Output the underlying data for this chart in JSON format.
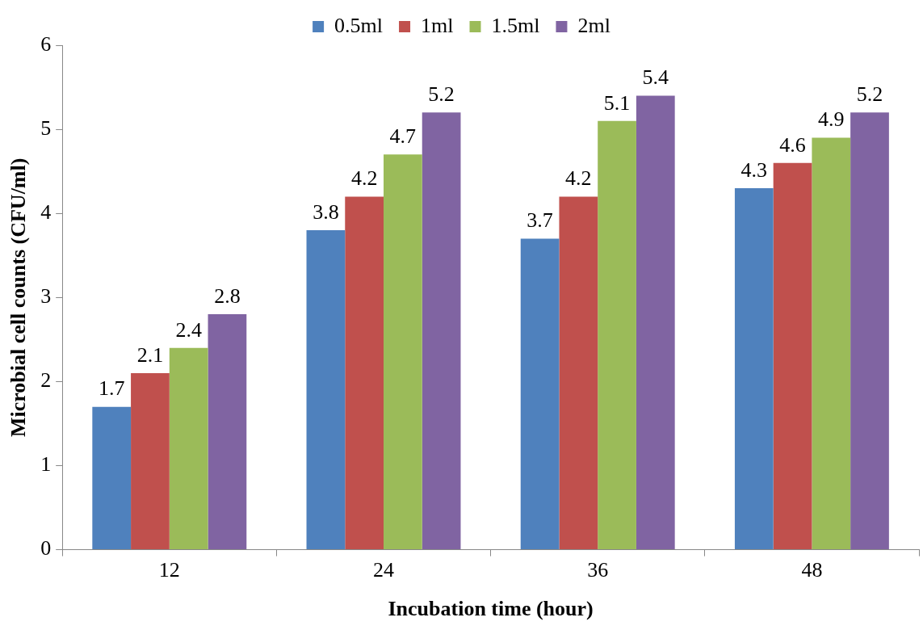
{
  "chart_data": {
    "type": "bar",
    "xlabel": "Incubation time (hour)",
    "ylabel": "Microbial cell counts (CFU/ml)",
    "categories": [
      "12",
      "24",
      "36",
      "48"
    ],
    "series": [
      {
        "name": "0.5ml",
        "color": "#4f81bd",
        "values": [
          1.7,
          3.8,
          3.7,
          4.3
        ]
      },
      {
        "name": "1ml",
        "color": "#c0504d",
        "values": [
          2.1,
          4.2,
          4.2,
          4.6
        ]
      },
      {
        "name": "1.5ml",
        "color": "#9bbb59",
        "values": [
          2.4,
          4.7,
          5.1,
          4.9
        ]
      },
      {
        "name": "2ml",
        "color": "#8064a2",
        "values": [
          2.8,
          5.2,
          5.4,
          5.2
        ]
      }
    ],
    "ylim": [
      0,
      6
    ],
    "yticks": [
      0,
      1,
      2,
      3,
      4,
      5,
      6
    ],
    "grid": false,
    "legend": "top",
    "data_labels": true
  }
}
